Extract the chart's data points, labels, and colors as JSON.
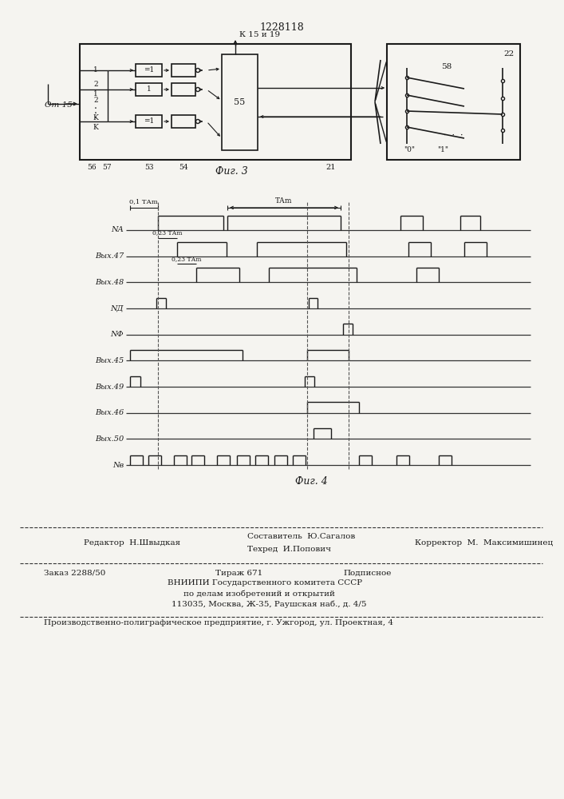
{
  "patent_number": "1228118",
  "fig3_caption": "Фиг. 3",
  "fig4_caption": "Фиг. 4",
  "bg_color": "#f5f4f0",
  "line_color": "#1a1a1a",
  "timing_labels": [
    "NА",
    "Вых.47",
    "Вых.48",
    "NД",
    "NФ",
    "Вых.45",
    "Вых.49",
    "Вых.46",
    "Вых.50",
    "Nв"
  ],
  "footer_editor": "Редактор  Н.Швыдкая",
  "footer_comp": "Составитель  Ю.Сагалов",
  "footer_tech": "Техред  И.Попович",
  "footer_corr": "Корректор  М.  Максимишинец",
  "footer_order": "Заказ 2288/50",
  "footer_tirazh": "Тираж 671",
  "footer_podp": "Подписное",
  "footer_vniip1": "ВНИИПИ Государственного комитета СССР",
  "footer_vniip2": "по делам изобретений и открытий",
  "footer_addr": "113035, Москва, Ж-35, Раушская наб., д. 4/5",
  "footer_last": "Производственно-полиграфическое предприятие, г. Ужгород, ул. Проектная, 4"
}
